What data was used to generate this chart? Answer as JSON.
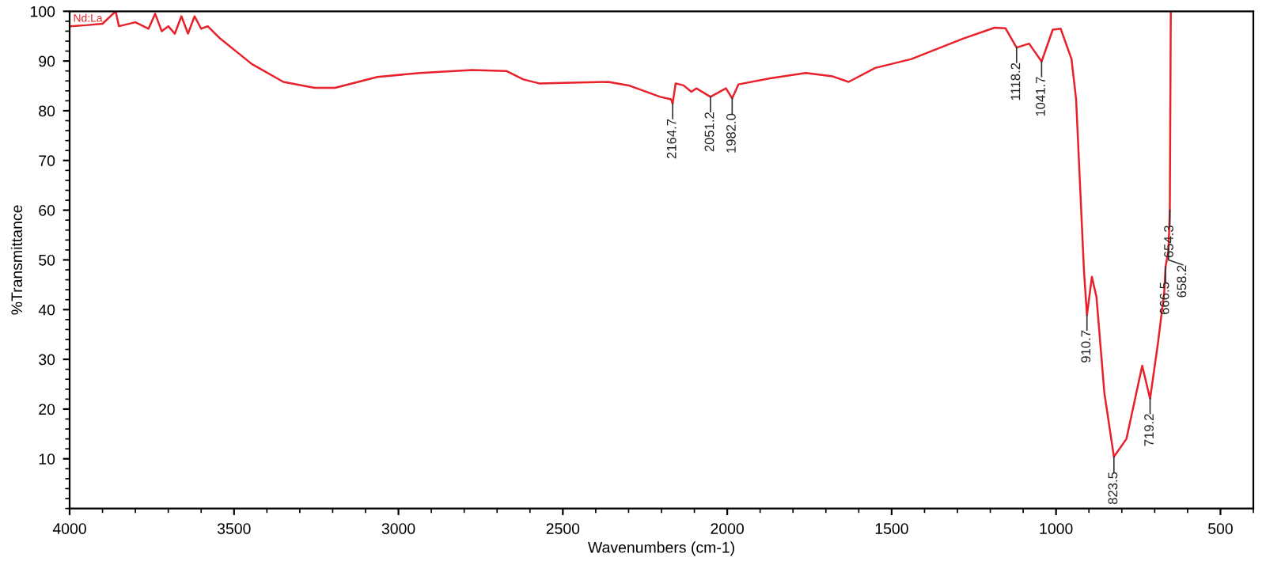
{
  "chart_data": {
    "type": "line",
    "xlabel": "Wavenumbers (cm-1)",
    "ylabel": "%Transmittance",
    "xlim": [
      4000,
      400
    ],
    "ylim": [
      0,
      100
    ],
    "xticks": [
      4000,
      3500,
      3000,
      2500,
      2000,
      1500,
      1000,
      500
    ],
    "yticks": [
      10,
      20,
      30,
      40,
      50,
      60,
      70,
      80,
      90,
      100
    ],
    "grid": false,
    "marker": "none",
    "line_style": "solid",
    "series": [
      {
        "color": "#e8202a",
        "x": [
          4000,
          3950,
          3900,
          3860,
          3850,
          3800,
          3760,
          3740,
          3720,
          3700,
          3680,
          3660,
          3640,
          3620,
          3600,
          3580,
          3565,
          3542,
          3446,
          3350,
          3255,
          3193,
          3064,
          2935,
          2777,
          2672,
          2620,
          2572,
          2362,
          2300,
          2204,
          2171,
          2166,
          2157,
          2133,
          2109,
          2094,
          2051,
          2004,
          1985,
          1966,
          1870,
          1760,
          1679,
          1631,
          1550,
          1440,
          1283,
          1187,
          1154,
          1120,
          1082,
          1044,
          1010,
          986,
          953,
          939,
          915,
          906,
          891,
          877,
          853,
          824,
          786,
          738,
          714,
          690,
          671,
          667,
          658,
          654,
          651
        ],
        "values": [
          97,
          97.2,
          97.5,
          100,
          97,
          97.8,
          96.5,
          99.5,
          96,
          97,
          95.5,
          99,
          95.5,
          99,
          96.5,
          97,
          96,
          94.5,
          89.4,
          85.8,
          84.6,
          84.6,
          86.8,
          87.6,
          88.2,
          88,
          86.3,
          85.5,
          85.8,
          85.1,
          82.8,
          82.3,
          81.4,
          85.5,
          85.1,
          83.8,
          84.5,
          82.8,
          84.5,
          82.5,
          85.3,
          86.5,
          87.6,
          86.9,
          85.8,
          88.6,
          90.4,
          94.5,
          96.7,
          96.6,
          92.7,
          93.5,
          89.9,
          96.3,
          96.5,
          90.4,
          82.3,
          47.7,
          38.9,
          46.6,
          42.5,
          23.2,
          10.4,
          14,
          28.7,
          22.1,
          33.3,
          43.5,
          48.6,
          52,
          60,
          100
        ]
      }
    ],
    "annotations": [
      "Nd:La",
      {
        "text": "2164.7",
        "x": 2166,
        "y": 81.4
      },
      {
        "text": "2051.2",
        "x": 2051,
        "y": 82.8
      },
      {
        "text": "1982.0",
        "x": 1985,
        "y": 82.5
      },
      {
        "text": "1118.2",
        "x": 1120,
        "y": 92.7
      },
      {
        "text": "1041.7",
        "x": 1044,
        "y": 89.9
      },
      {
        "text": "910.7",
        "x": 906,
        "y": 38.9
      },
      {
        "text": "823.5",
        "x": 824,
        "y": 10.4
      },
      {
        "text": "719.2",
        "x": 714,
        "y": 22.1
      },
      {
        "text": "666.5",
        "x": 667,
        "y": 48.6
      },
      {
        "text": "658.2",
        "x": 658,
        "y": 52
      },
      {
        "text": "654.3",
        "x": 654,
        "y": 60
      }
    ]
  }
}
